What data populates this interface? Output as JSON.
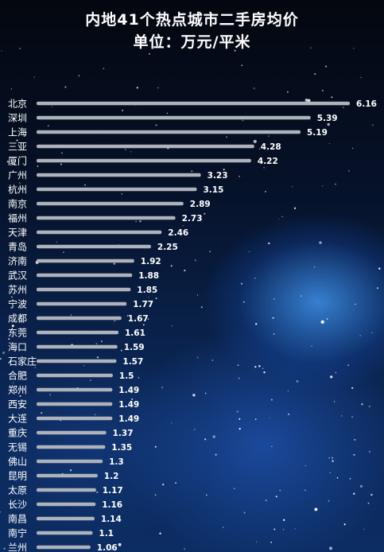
{
  "header": {
    "title_line1": "内地41个热点城市二手房均价",
    "title_line2": "单位：万元/平米"
  },
  "colors": {
    "bar": "#aeb3bb",
    "text": "#ffffff"
  },
  "chart_data": {
    "type": "bar",
    "orientation": "horizontal",
    "title": "内地41个热点城市二手房均价",
    "subtitle": "单位：万元/平米",
    "categories": [
      "北京",
      "深圳",
      "上海",
      "三亚",
      "厦门",
      "广州",
      "杭州",
      "南京",
      "福州",
      "天津",
      "青岛",
      "济南",
      "武汉",
      "苏州",
      "宁波",
      "成都",
      "东莞",
      "海口",
      "石家庄",
      "合肥",
      "郑州",
      "西安",
      "大连",
      "重庆",
      "无锡",
      "佛山",
      "昆明",
      "太原",
      "长沙",
      "南昌",
      "南宁",
      "兰州"
    ],
    "values": [
      6.16,
      5.39,
      5.19,
      4.28,
      4.22,
      3.23,
      3.15,
      2.89,
      2.73,
      2.46,
      2.25,
      1.92,
      1.88,
      1.85,
      1.77,
      1.67,
      1.61,
      1.59,
      1.57,
      1.5,
      1.49,
      1.49,
      1.49,
      1.37,
      1.35,
      1.3,
      1.2,
      1.17,
      1.16,
      1.14,
      1.1,
      1.06
    ],
    "value_labels": [
      "6.16",
      "5.39",
      "5.19",
      "4.28",
      "4.22",
      "3.23",
      "3.15",
      "2.89",
      "2.73",
      "2.46",
      "2.25",
      "1.92",
      "1.88",
      "1.85",
      "1.77",
      "1.67",
      "1.61",
      "1.59",
      "1.57",
      "1.5",
      "1.49",
      "1.49",
      "1.49",
      "1.37",
      "1.35",
      "1.3",
      "1.2",
      "1.17",
      "1.16",
      "1.14",
      "1.1",
      "1.06"
    ],
    "xlim": [
      0,
      6.16
    ],
    "grid": false,
    "legend": "none"
  }
}
